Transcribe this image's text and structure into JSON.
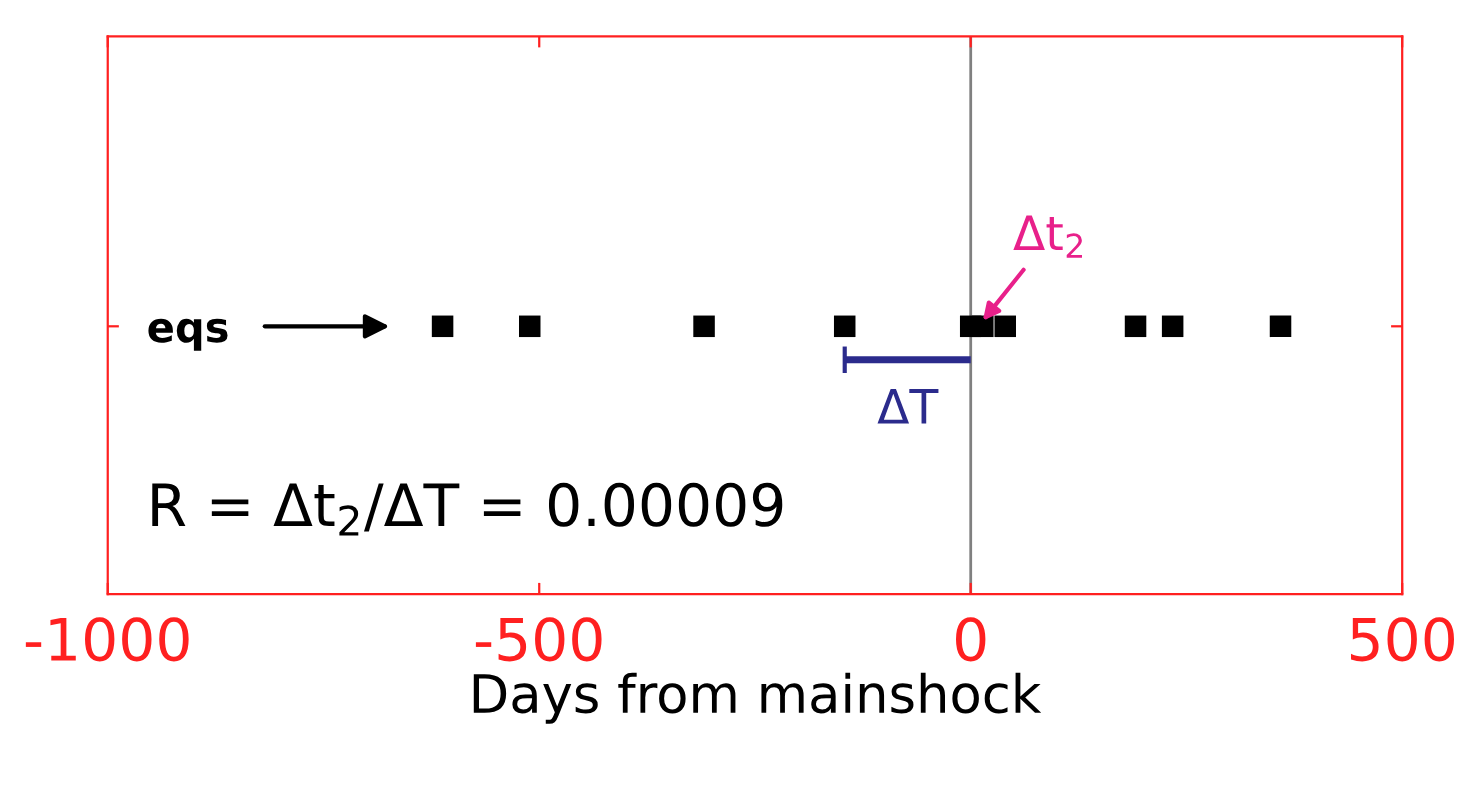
{
  "chart_data": {
    "type": "scatter",
    "orientation": "horizontal",
    "xlabel": "Days from mainshock",
    "categories": [
      "eqs"
    ],
    "series": [
      {
        "color": "#000000",
        "values": [
          -612
        ]
      },
      {
        "color": "#000000",
        "values": [
          -511
        ]
      },
      {
        "color": "#000000",
        "values": [
          -309
        ]
      },
      {
        "color": "#000000",
        "values": [
          -146
        ]
      },
      {
        "color": "#000000",
        "values": [
          0
        ]
      },
      {
        "color": "#000000",
        "values": [
          14
        ]
      },
      {
        "color": "#000000",
        "values": [
          40
        ]
      },
      {
        "color": "#000000",
        "values": [
          191
        ]
      },
      {
        "color": "#000000",
        "values": [
          234
        ]
      },
      {
        "color": "#000000",
        "values": [
          359
        ]
      }
    ],
    "marker": "square",
    "xlim": [
      -1000,
      500
    ],
    "xticks": [
      -1000,
      -500,
      0,
      500
    ],
    "grid": false,
    "ref_lines": [
      {
        "axis": "x",
        "value": 0,
        "color": "#808080"
      }
    ],
    "annotations": [
      {
        "text": "Δt$_{2}$",
        "x": 14,
        "y": "eqs"
      },
      "ΔT",
      "R = Δt$_{2}$/ΔT = 0.00009"
    ]
  }
}
